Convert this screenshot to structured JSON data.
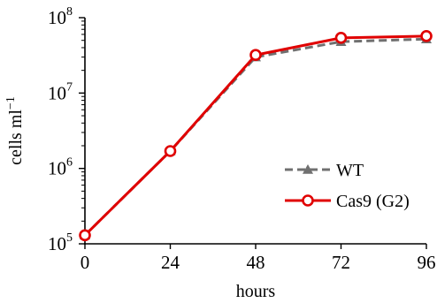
{
  "chart_data": {
    "type": "line",
    "title": "",
    "xlabel": "hours",
    "ylabel_main": "cells ml",
    "ylabel_sup": "−1",
    "x": [
      0,
      24,
      48,
      72,
      96
    ],
    "xlim": [
      0,
      96
    ],
    "ylim": [
      100000,
      100000000
    ],
    "yscale": "log",
    "grid": false,
    "legend_position": "right",
    "x_ticks": [
      "0",
      "24",
      "48",
      "72",
      "96"
    ],
    "y_ticks": [
      {
        "base": "10",
        "exp": "5",
        "value": 100000
      },
      {
        "base": "10",
        "exp": "6",
        "value": 1000000
      },
      {
        "base": "10",
        "exp": "7",
        "value": 10000000
      },
      {
        "base": "10",
        "exp": "8",
        "value": 100000000
      }
    ],
    "series": [
      {
        "name": "WT",
        "values": [
          130000,
          1700000,
          30000000,
          48000000,
          52000000
        ],
        "color": "#707070",
        "marker": "triangle",
        "dash": "dashed"
      },
      {
        "name": "Cas9 (G2)",
        "values": [
          130000,
          1700000,
          32000000,
          54000000,
          57000000
        ],
        "color": "#e00000",
        "marker": "circle",
        "dash": "solid"
      }
    ]
  }
}
